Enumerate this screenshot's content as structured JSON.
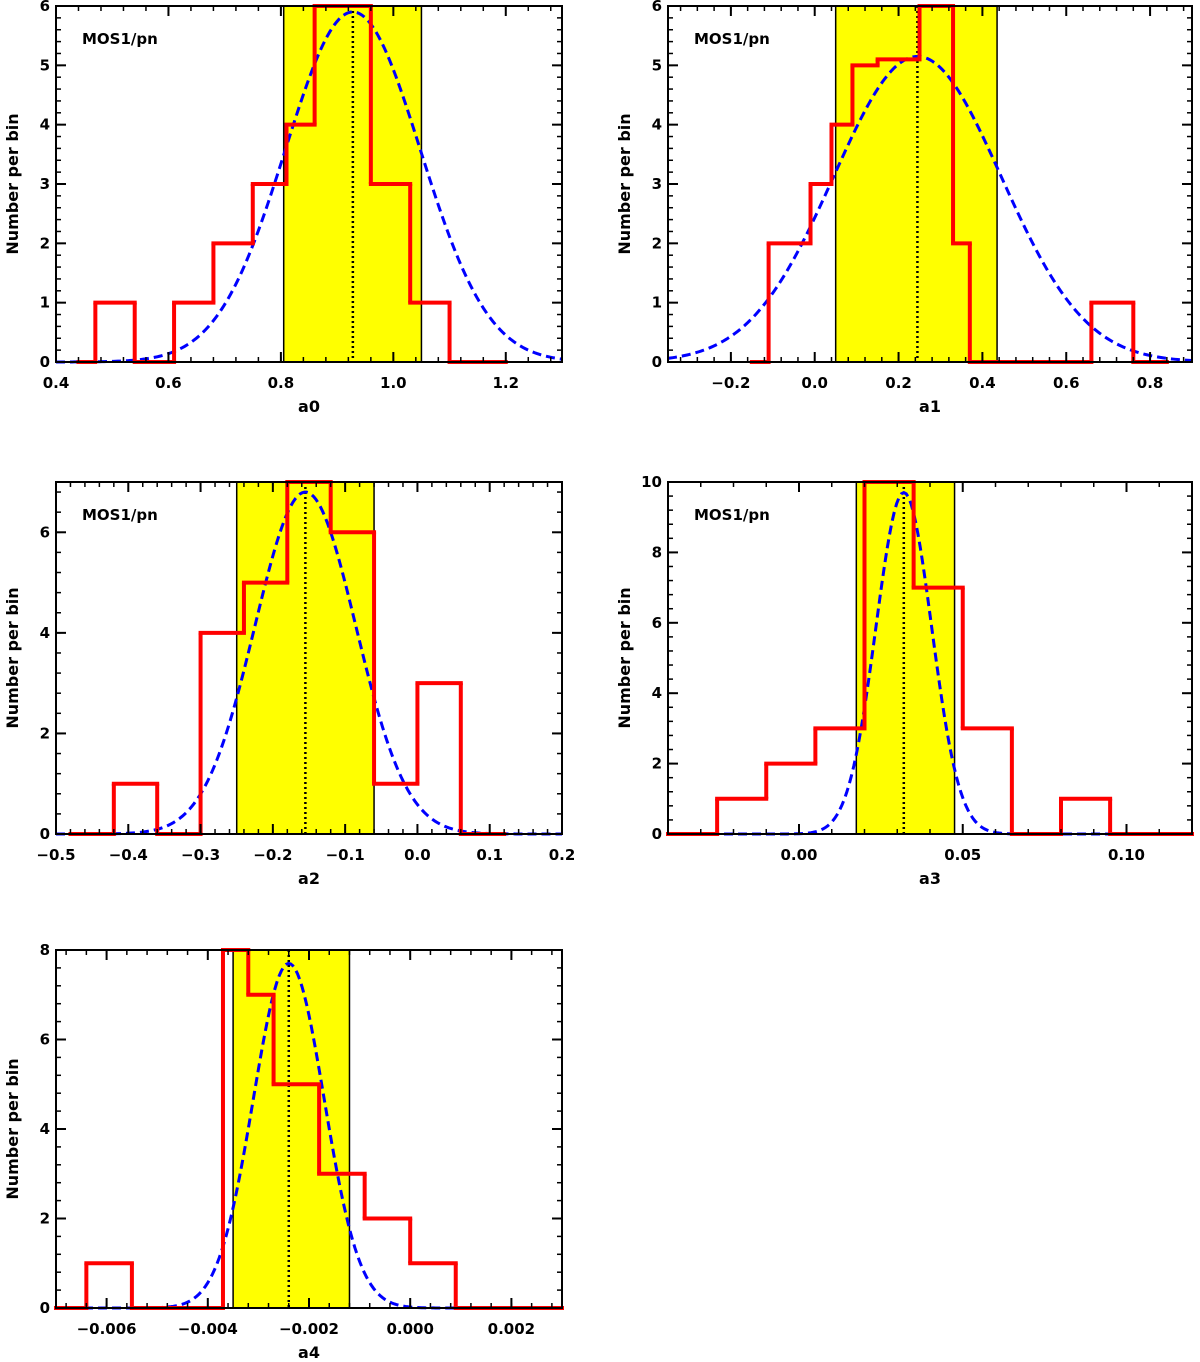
{
  "chart_data": [
    {
      "type": "bar",
      "id": "a0",
      "title": "",
      "label": "MOS1/pn",
      "xlabel": "a0",
      "ylabel": "Number per bin",
      "xlim": [
        0.4,
        1.3
      ],
      "ylim": [
        0,
        6
      ],
      "x_ticks": [
        0.4,
        0.6,
        0.8,
        1.0,
        1.2
      ],
      "x_tick_labels": [
        "0.4",
        "0.6",
        "0.8",
        "1.0",
        "1.2"
      ],
      "y_ticks": [
        0,
        1,
        2,
        3,
        4,
        5,
        6
      ],
      "y_tick_labels": [
        "0",
        "1",
        "2",
        "3",
        "4",
        "5",
        "6"
      ],
      "histogram": {
        "series": "histogram",
        "color": "#ff0000",
        "bin_edges": [
          0.44,
          0.47,
          0.54,
          0.61,
          0.68,
          0.75,
          0.81,
          0.86,
          0.96,
          1.03,
          1.1,
          1.17,
          1.2
        ],
        "counts": [
          0,
          1,
          0,
          1,
          2,
          3,
          4,
          6,
          3,
          1,
          0,
          0
        ]
      },
      "gaussian_fit": {
        "series": "gaussian fit",
        "color": "#0000ff",
        "peak": 5.9,
        "mean": 0.928,
        "sigma": 0.12
      },
      "interval": {
        "low": 0.805,
        "high": 1.05,
        "color": "#ffff00"
      },
      "mean_line": 0.928
    },
    {
      "type": "bar",
      "id": "a1",
      "title": "",
      "label": "MOS1/pn",
      "xlabel": "a1",
      "ylabel": "Number per bin",
      "xlim": [
        -0.35,
        0.9
      ],
      "ylim": [
        0,
        6
      ],
      "x_ticks": [
        -0.2,
        0.0,
        0.2,
        0.4,
        0.6,
        0.8
      ],
      "x_tick_labels": [
        "−0.2",
        "0.0",
        "0.2",
        "0.4",
        "0.6",
        "0.8"
      ],
      "y_ticks": [
        0,
        1,
        2,
        3,
        4,
        5,
        6
      ],
      "y_tick_labels": [
        "0",
        "1",
        "2",
        "3",
        "4",
        "5",
        "6"
      ],
      "histogram": {
        "series": "histogram",
        "color": "#ff0000",
        "bin_edges": [
          -0.15,
          -0.11,
          -0.01,
          0.04,
          0.09,
          0.15,
          0.25,
          0.33,
          0.37,
          0.66,
          0.76,
          0.84
        ],
        "counts": [
          0,
          2,
          3,
          4,
          5,
          5.1,
          6,
          2,
          0,
          1,
          0
        ]
      },
      "gaussian_fit": {
        "series": "gaussian fit",
        "color": "#0000ff",
        "peak": 5.15,
        "mean": 0.245,
        "sigma": 0.2
      },
      "interval": {
        "low": 0.05,
        "high": 0.435,
        "color": "#ffff00"
      },
      "mean_line": 0.245
    },
    {
      "type": "bar",
      "id": "a2",
      "title": "",
      "label": "MOS1/pn",
      "xlabel": "a2",
      "ylabel": "Number per bin",
      "xlim": [
        -0.5,
        0.2
      ],
      "ylim": [
        0,
        7
      ],
      "x_ticks": [
        -0.5,
        -0.4,
        -0.3,
        -0.2,
        -0.1,
        0.0,
        0.1,
        0.2
      ],
      "x_tick_labels": [
        "−0.5",
        "−0.4",
        "−0.3",
        "−0.2",
        "−0.1",
        "0.0",
        "0.1",
        "0.2"
      ],
      "y_ticks": [
        0,
        2,
        4,
        6
      ],
      "y_tick_labels": [
        "0",
        "2",
        "4",
        "6"
      ],
      "histogram": {
        "series": "histogram",
        "color": "#ff0000",
        "bin_edges": [
          -0.48,
          -0.42,
          -0.36,
          -0.3,
          -0.24,
          -0.18,
          -0.12,
          -0.06,
          0.0,
          0.06,
          0.12
        ],
        "counts": [
          0,
          1,
          0,
          4,
          5,
          7,
          6,
          1,
          3,
          0
        ]
      },
      "gaussian_fit": {
        "series": "gaussian fit",
        "color": "#0000ff",
        "peak": 6.8,
        "mean": -0.155,
        "sigma": 0.07
      },
      "interval": {
        "low": -0.25,
        "high": -0.06,
        "color": "#ffff00"
      },
      "mean_line": -0.155
    },
    {
      "type": "bar",
      "id": "a3",
      "title": "",
      "label": "MOS1/pn",
      "xlabel": "a3",
      "ylabel": "Number per bin",
      "xlim": [
        -0.04,
        0.12
      ],
      "ylim": [
        0,
        10
      ],
      "x_ticks": [
        0.0,
        0.05,
        0.1
      ],
      "x_tick_labels": [
        "0.00",
        "0.05",
        "0.10"
      ],
      "y_ticks": [
        0,
        2,
        4,
        6,
        8,
        10
      ],
      "y_tick_labels": [
        "0",
        "2",
        "4",
        "6",
        "8",
        "10"
      ],
      "histogram": {
        "series": "histogram",
        "color": "#ff0000",
        "bin_edges": [
          -0.04,
          -0.025,
          -0.01,
          0.005,
          0.02,
          0.035,
          0.05,
          0.065,
          0.08,
          0.095,
          0.12
        ],
        "counts": [
          0,
          1,
          2,
          3,
          10,
          7,
          3,
          0,
          1,
          0
        ]
      },
      "gaussian_fit": {
        "series": "gaussian fit",
        "color": "#0000ff",
        "peak": 9.7,
        "mean": 0.032,
        "sigma": 0.0085
      },
      "interval": {
        "low": 0.0175,
        "high": 0.0475,
        "color": "#ffff00"
      },
      "mean_line": 0.032
    },
    {
      "type": "bar",
      "id": "a4",
      "title": "",
      "label": "",
      "xlabel": "a4",
      "ylabel": "Number per bin",
      "xlim": [
        -0.007,
        0.003
      ],
      "ylim": [
        0,
        8
      ],
      "x_ticks": [
        -0.006,
        -0.004,
        -0.002,
        0.0,
        0.002
      ],
      "x_tick_labels": [
        "−0.006",
        "−0.004",
        "−0.002",
        "0.000",
        "0.002"
      ],
      "y_ticks": [
        0,
        2,
        4,
        6,
        8
      ],
      "y_tick_labels": [
        "0",
        "2",
        "4",
        "6",
        "8"
      ],
      "histogram": {
        "series": "histogram",
        "color": "#ff0000",
        "bin_edges": [
          -0.007,
          -0.0064,
          -0.0055,
          -0.0037,
          -0.0032,
          -0.0027,
          -0.0018,
          -0.0009,
          0.0,
          0.0009,
          0.0018,
          0.003
        ],
        "counts": [
          0,
          1,
          0,
          8,
          7,
          5,
          3,
          2,
          1,
          0,
          0
        ]
      },
      "gaussian_fit": {
        "series": "gaussian fit",
        "color": "#0000ff",
        "peak": 7.7,
        "mean": -0.0024,
        "sigma": 0.0007
      },
      "interval": {
        "low": -0.0035,
        "high": -0.0012,
        "color": "#ffff00"
      },
      "mean_line": -0.0024
    }
  ]
}
